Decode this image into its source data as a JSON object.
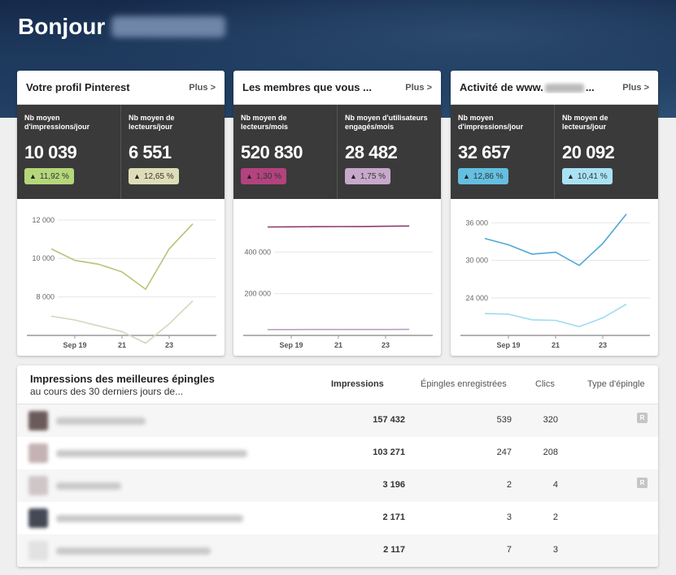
{
  "greeting": "Bonjour",
  "cards": [
    {
      "title": "Votre profil Pinterest",
      "more": "Plus >",
      "stats": [
        {
          "label": "Nb moyen d'impressions/jour",
          "value": "10 039",
          "change": "11,92 %",
          "color": "#b5d77b"
        },
        {
          "label": "Nb moyen de lecteurs/jour",
          "value": "6 551",
          "change": "12,65 %",
          "color": "#dfdcb8"
        }
      ]
    },
    {
      "title": "Les membres que vous ...",
      "more": "Plus >",
      "stats": [
        {
          "label": "Nb moyen de lecteurs/mois",
          "value": "520 830",
          "change": "1,30 %",
          "color": "#b2437e"
        },
        {
          "label": "Nb moyen d'utilisateurs engagés/mois",
          "value": "28 482",
          "change": "1,75 %",
          "color": "#c7a9cb"
        }
      ]
    },
    {
      "title_prefix": "Activité de www.",
      "title_suffix": "...",
      "more": "Plus >",
      "stats": [
        {
          "label": "Nb moyen d'impressions/jour",
          "value": "32 657",
          "change": "12,86 %",
          "color": "#64bfe0"
        },
        {
          "label": "Nb moyen de lecteurs/jour",
          "value": "20 092",
          "change": "10,41 %",
          "color": "#a9e2f4"
        }
      ]
    }
  ],
  "chart_data": [
    {
      "type": "line",
      "x_ticks": [
        "Sep 19",
        "21",
        "23"
      ],
      "y_ticks": [
        "12 000",
        "10 000",
        "8 000"
      ],
      "ylim": [
        6000,
        12500
      ],
      "series": [
        {
          "color": "#b2c67a",
          "values": [
            10500,
            9900,
            9700,
            9300,
            8400,
            10500,
            11800
          ]
        },
        {
          "color": "#d8d5bb",
          "values": [
            7000,
            6800,
            6500,
            6200,
            5600,
            6600,
            7800
          ]
        }
      ]
    },
    {
      "type": "line",
      "x_ticks": [
        "Sep 19",
        "21",
        "23"
      ],
      "y_ticks": [
        "400 000",
        "200 000"
      ],
      "ylim": [
        0,
        600000
      ],
      "series": [
        {
          "color": "#8e3b72",
          "values": [
            520000,
            521000,
            521500,
            522000,
            522500,
            523500,
            525000
          ]
        },
        {
          "color": "#b8a0c4",
          "values": [
            28000,
            28200,
            28300,
            28400,
            28500,
            28600,
            28700
          ]
        }
      ]
    },
    {
      "type": "line",
      "x_ticks": [
        "Sep 19",
        "21",
        "23"
      ],
      "y_ticks": [
        "36 000",
        "30 000",
        "24 000"
      ],
      "ylim": [
        18000,
        38000
      ],
      "series": [
        {
          "color": "#4fa8d6",
          "values": [
            33500,
            32500,
            31000,
            31300,
            29200,
            32700,
            37400
          ]
        },
        {
          "color": "#9bdcf1",
          "values": [
            21500,
            21400,
            20500,
            20400,
            19400,
            20800,
            23000
          ]
        }
      ]
    }
  ],
  "table": {
    "title": "Impressions des meilleures épingles",
    "subtitle": "au cours des 30 derniers jours de...",
    "columns": [
      "Impressions",
      "Épingles enregistrées",
      "Clics",
      "Type d'épingle"
    ],
    "rows": [
      {
        "impressions": "157 432",
        "saves": "539",
        "clicks": "320",
        "pin_type": "R",
        "thumb": "#6b5a5a",
        "w": 110
      },
      {
        "impressions": "103 271",
        "saves": "247",
        "clicks": "208",
        "pin_type": "",
        "thumb": "#c5b2b4",
        "w": 235
      },
      {
        "impressions": "3 196",
        "saves": "2",
        "clicks": "4",
        "pin_type": "R",
        "thumb": "#cfc7c7",
        "w": 80
      },
      {
        "impressions": "2 171",
        "saves": "3",
        "clicks": "2",
        "pin_type": "",
        "thumb": "#444a55",
        "w": 230
      },
      {
        "impressions": "2 117",
        "saves": "7",
        "clicks": "3",
        "pin_type": "",
        "thumb": "#e2e2e2",
        "w": 190
      }
    ]
  }
}
